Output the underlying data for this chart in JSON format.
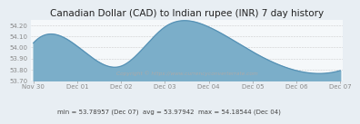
{
  "title": "Canadian Dollar (CAD) to Indian rupee (INR) 7 day history",
  "x_labels": [
    "Nov 30",
    "Dec 01",
    "Dec 02",
    "Dec 03",
    "Dec 04",
    "Dec 05",
    "Dec 06",
    "Dec 07"
  ],
  "x_positions": [
    0,
    1,
    2,
    3,
    4,
    5,
    6,
    7
  ],
  "y_values": [
    54.04,
    54.01,
    53.83,
    54.185,
    54.185,
    53.96,
    53.79,
    53.79
  ],
  "ylim": [
    53.7,
    54.25
  ],
  "yticks": [
    53.7,
    53.8,
    53.9,
    54.0,
    54.1,
    54.2
  ],
  "ytick_labels": [
    "53.70",
    "53.80",
    "53.90",
    "54.00",
    "54.10",
    "54.20"
  ],
  "fill_color": "#7baec9",
  "line_color": "#5591b5",
  "bg_color": "#e8eef3",
  "plot_bg": "#f5f8fa",
  "footer_text": "min = 53.78957 (Dec 07)  avg = 53.97942  max = 54.18544 (Dec 04)",
  "copyright_text": "Copyright © https://www.currencyconverterrate.com",
  "title_fontsize": 7.5,
  "tick_fontsize": 5.0,
  "footer_fontsize": 5.0,
  "copyright_fontsize": 4.2
}
